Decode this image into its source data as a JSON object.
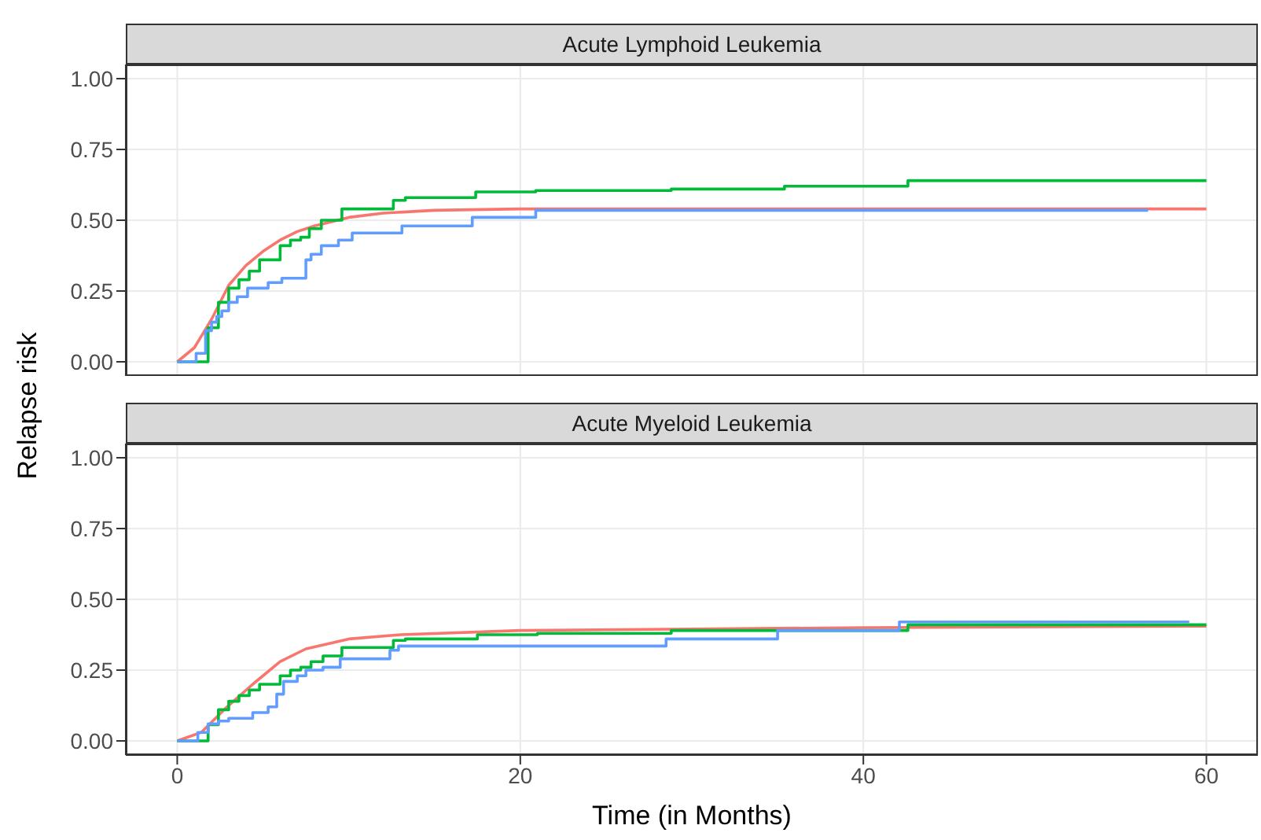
{
  "chart_data": [
    {
      "type": "step",
      "title": "Acute Lymphoid Leukemia",
      "ylabel": "Relapse risk",
      "xlim": [
        -3,
        63
      ],
      "xticks": [
        0,
        20,
        40,
        60
      ],
      "ylim": [
        -0.05,
        1.05
      ],
      "yticks": [
        {
          "value": 0,
          "label": "0.00"
        },
        {
          "value": 0.25,
          "label": "0.25"
        },
        {
          "value": 0.5,
          "label": "0.50"
        },
        {
          "value": 0.75,
          "label": "0.75"
        },
        {
          "value": 1,
          "label": "1.00"
        }
      ],
      "grid": true,
      "tick_labels": "y",
      "series": [
        {
          "type": "line",
          "color": "#f8766d",
          "x": [
            0,
            1,
            2,
            3,
            4,
            5,
            6,
            7,
            8,
            10,
            12,
            15,
            20,
            60
          ],
          "values": [
            0,
            0.05,
            0.15,
            0.27,
            0.34,
            0.39,
            0.43,
            0.46,
            0.48,
            0.51,
            0.525,
            0.535,
            0.54,
            0.54
          ]
        },
        {
          "color": "#00ba38",
          "x": [
            0,
            1.8,
            2.4,
            3.0,
            3.6,
            4.2,
            4.8,
            6.0,
            6.6,
            7.2,
            7.7,
            8.4,
            9.6,
            12.6,
            13.3,
            17.4,
            20.9,
            28.8,
            35.4,
            42.6,
            60
          ],
          "values": [
            0,
            0.12,
            0.21,
            0.26,
            0.29,
            0.32,
            0.36,
            0.41,
            0.43,
            0.44,
            0.47,
            0.5,
            0.54,
            0.57,
            0.58,
            0.6,
            0.605,
            0.61,
            0.62,
            0.64,
            0.64
          ]
        },
        {
          "color": "#619cff",
          "x": [
            0,
            1.1,
            1.65,
            2.0,
            2.3,
            2.6,
            3.0,
            3.5,
            4.1,
            5.3,
            6.1,
            7.5,
            7.8,
            8.4,
            9.4,
            10.2,
            13.1,
            17.2,
            20.9,
            56.6
          ],
          "values": [
            0,
            0.03,
            0.11,
            0.14,
            0.16,
            0.18,
            0.21,
            0.23,
            0.26,
            0.28,
            0.295,
            0.36,
            0.38,
            0.41,
            0.43,
            0.455,
            0.48,
            0.51,
            0.535,
            0.535
          ]
        }
      ]
    },
    {
      "type": "step",
      "title": "Acute Myeloid Leukemia",
      "xlabel": "Time (in Months)",
      "xlim": [
        -3,
        63
      ],
      "xticks": [
        0,
        20,
        40,
        60
      ],
      "ylim": [
        -0.05,
        1.05
      ],
      "yticks": [
        {
          "value": 0,
          "label": "0.00"
        },
        {
          "value": 0.25,
          "label": "0.25"
        },
        {
          "value": 0.5,
          "label": "0.50"
        },
        {
          "value": 0.75,
          "label": "0.75"
        },
        {
          "value": 1,
          "label": "1.00"
        }
      ],
      "grid": true,
      "series": [
        {
          "type": "line",
          "color": "#f8766d",
          "x": [
            0,
            1.4,
            2.9,
            4.4,
            6,
            7.5,
            10,
            13,
            20,
            40,
            60
          ],
          "values": [
            0,
            0.03,
            0.12,
            0.2,
            0.28,
            0.325,
            0.36,
            0.375,
            0.39,
            0.4,
            0.405
          ]
        },
        {
          "color": "#00ba38",
          "x": [
            0,
            1.8,
            2.4,
            3.0,
            3.6,
            4.2,
            4.8,
            6.0,
            6.6,
            7.2,
            7.8,
            8.5,
            9.6,
            12.6,
            13.3,
            17.5,
            21,
            28.8,
            42.6,
            60
          ],
          "values": [
            0,
            0.057,
            0.11,
            0.14,
            0.16,
            0.18,
            0.2,
            0.23,
            0.25,
            0.26,
            0.28,
            0.3,
            0.33,
            0.355,
            0.36,
            0.375,
            0.38,
            0.39,
            0.41,
            0.41
          ]
        },
        {
          "color": "#619cff",
          "x": [
            0,
            1.2,
            1.8,
            2.4,
            3.0,
            4.4,
            5.3,
            5.8,
            6.2,
            7.0,
            7.5,
            8.5,
            9.5,
            12.4,
            12.9,
            28.5,
            35,
            42.1,
            59
          ],
          "values": [
            0,
            0.03,
            0.06,
            0.07,
            0.08,
            0.1,
            0.12,
            0.165,
            0.21,
            0.23,
            0.25,
            0.26,
            0.29,
            0.32,
            0.335,
            0.36,
            0.39,
            0.42,
            0.42
          ]
        }
      ]
    }
  ]
}
